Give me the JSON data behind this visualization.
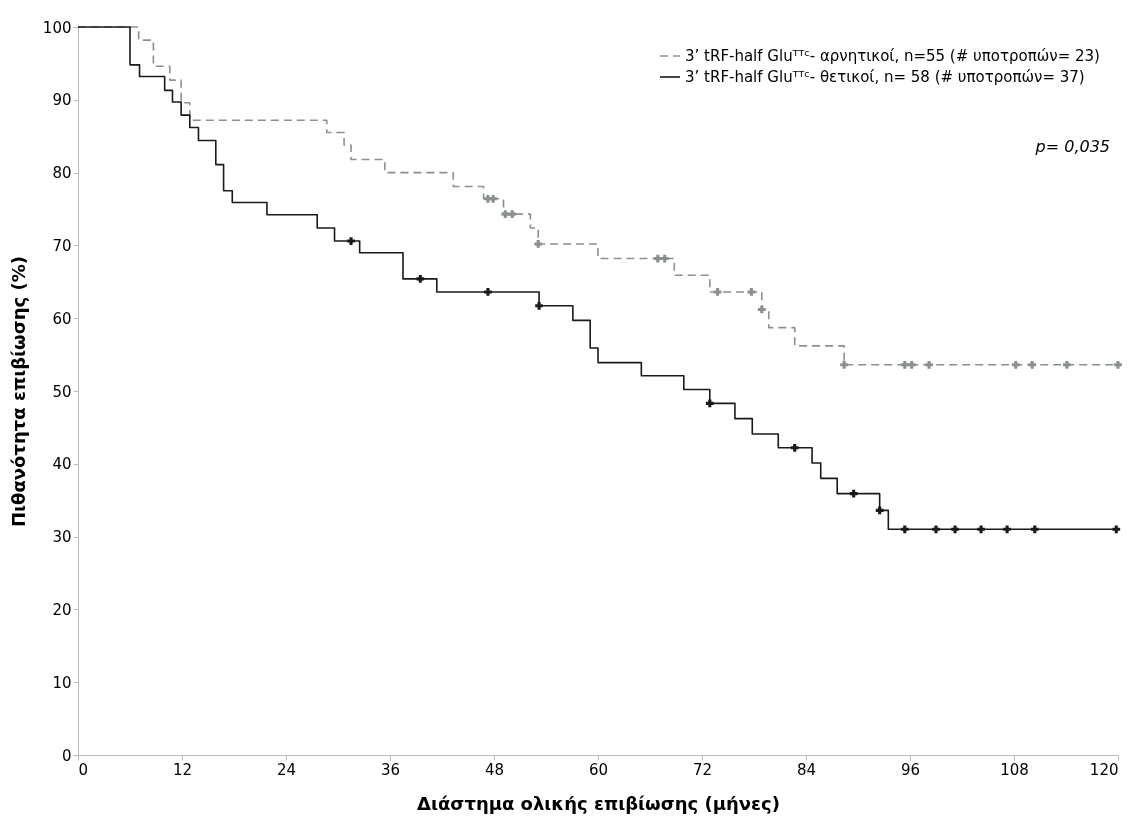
{
  "chart_data": {
    "type": "step",
    "xlabel": "Διάστημα ολικής επιβίωσης (μήνες)",
    "ylabel": "Πιθανότητα επιβίωσης (%)",
    "xlim": [
      0,
      120
    ],
    "xticks": [
      0,
      12,
      24,
      36,
      48,
      60,
      72,
      84,
      96,
      108,
      120
    ],
    "ylim": [
      0,
      100
    ],
    "yticks": [
      0,
      10,
      20,
      30,
      40,
      50,
      60,
      70,
      80,
      90,
      100
    ],
    "grid": false,
    "legend": "top right",
    "annotations": [
      "p= 0,035"
    ],
    "series": [
      {
        "name": "3’ tRF-half Gluᵀᵀᶜ- αρνητικοί, n=55 (# υποτροπών= 23)",
        "type": "step",
        "color": "#8a9090",
        "line_style": "dashed",
        "x": [
          0,
          7.0,
          8.7,
          10.6,
          11.9,
          12.9,
          28.7,
          30.7,
          31.5,
          35.4,
          43.3,
          46.8,
          49.1,
          52.2,
          53.1,
          60.0,
          68.8,
          72.9,
          78.9,
          79.7,
          82.7,
          88.4,
          120
        ],
        "values": [
          100,
          98.2,
          94.6,
          92.7,
          89.6,
          87.2,
          85.5,
          83.8,
          81.8,
          80.0,
          78.1,
          76.4,
          74.3,
          72.4,
          70.2,
          68.2,
          65.9,
          63.6,
          61.2,
          58.7,
          56.2,
          53.6,
          53.6
        ]
      },
      {
        "name": "3’ tRF-half Gluᵀᵀᶜ- θετικοί, n= 58 (# υποτροπών= 37)",
        "type": "step",
        "color": "#1a1a1a",
        "line_style": "solid",
        "x": [
          0,
          6.0,
          7.1,
          10.0,
          10.9,
          11.9,
          12.9,
          13.9,
          15.9,
          16.8,
          17.8,
          21.8,
          27.6,
          29.6,
          32.5,
          37.5,
          41.4,
          53.2,
          57.1,
          59.1,
          60.0,
          65.0,
          69.9,
          72.9,
          75.8,
          77.8,
          80.8,
          84.7,
          85.7,
          87.6,
          92.5,
          93.5,
          120
        ],
        "values": [
          100,
          94.8,
          93.2,
          91.3,
          89.7,
          87.9,
          86.2,
          84.4,
          81.1,
          77.5,
          75.9,
          74.2,
          72.4,
          70.6,
          69.0,
          65.4,
          63.6,
          61.7,
          59.7,
          55.9,
          53.9,
          52.1,
          50.2,
          48.3,
          46.2,
          44.1,
          42.2,
          40.1,
          38.0,
          35.9,
          33.6,
          31.0,
          31.0
        ]
      },
      {
        "type": "scatter",
        "marker": "cross",
        "color": "#8a9090",
        "x": [
          47.3,
          47.9,
          49.3,
          50.1,
          53.1,
          66.9,
          67.7,
          73.8,
          77.7,
          78.9,
          88.4,
          95.4,
          96.2,
          98.2,
          108.2,
          110.1,
          114.1,
          120
        ],
        "values": [
          76.4,
          76.4,
          74.3,
          74.3,
          70.2,
          68.2,
          68.2,
          63.6,
          63.6,
          61.2,
          53.6,
          53.6,
          53.6,
          53.6,
          53.6,
          53.6,
          53.6,
          53.6
        ]
      },
      {
        "type": "scatter",
        "marker": "cross",
        "color": "#1a1a1a",
        "x": [
          31.5,
          39.5,
          47.3,
          53.2,
          72.9,
          82.7,
          89.5,
          92.5,
          95.4,
          99.0,
          101.2,
          104.2,
          107.2,
          110.4,
          119.8
        ],
        "values": [
          70.6,
          65.4,
          63.6,
          61.7,
          48.3,
          42.2,
          35.9,
          33.6,
          31.0,
          31.0,
          31.0,
          31.0,
          31.0,
          31.0,
          31.0
        ]
      }
    ]
  }
}
